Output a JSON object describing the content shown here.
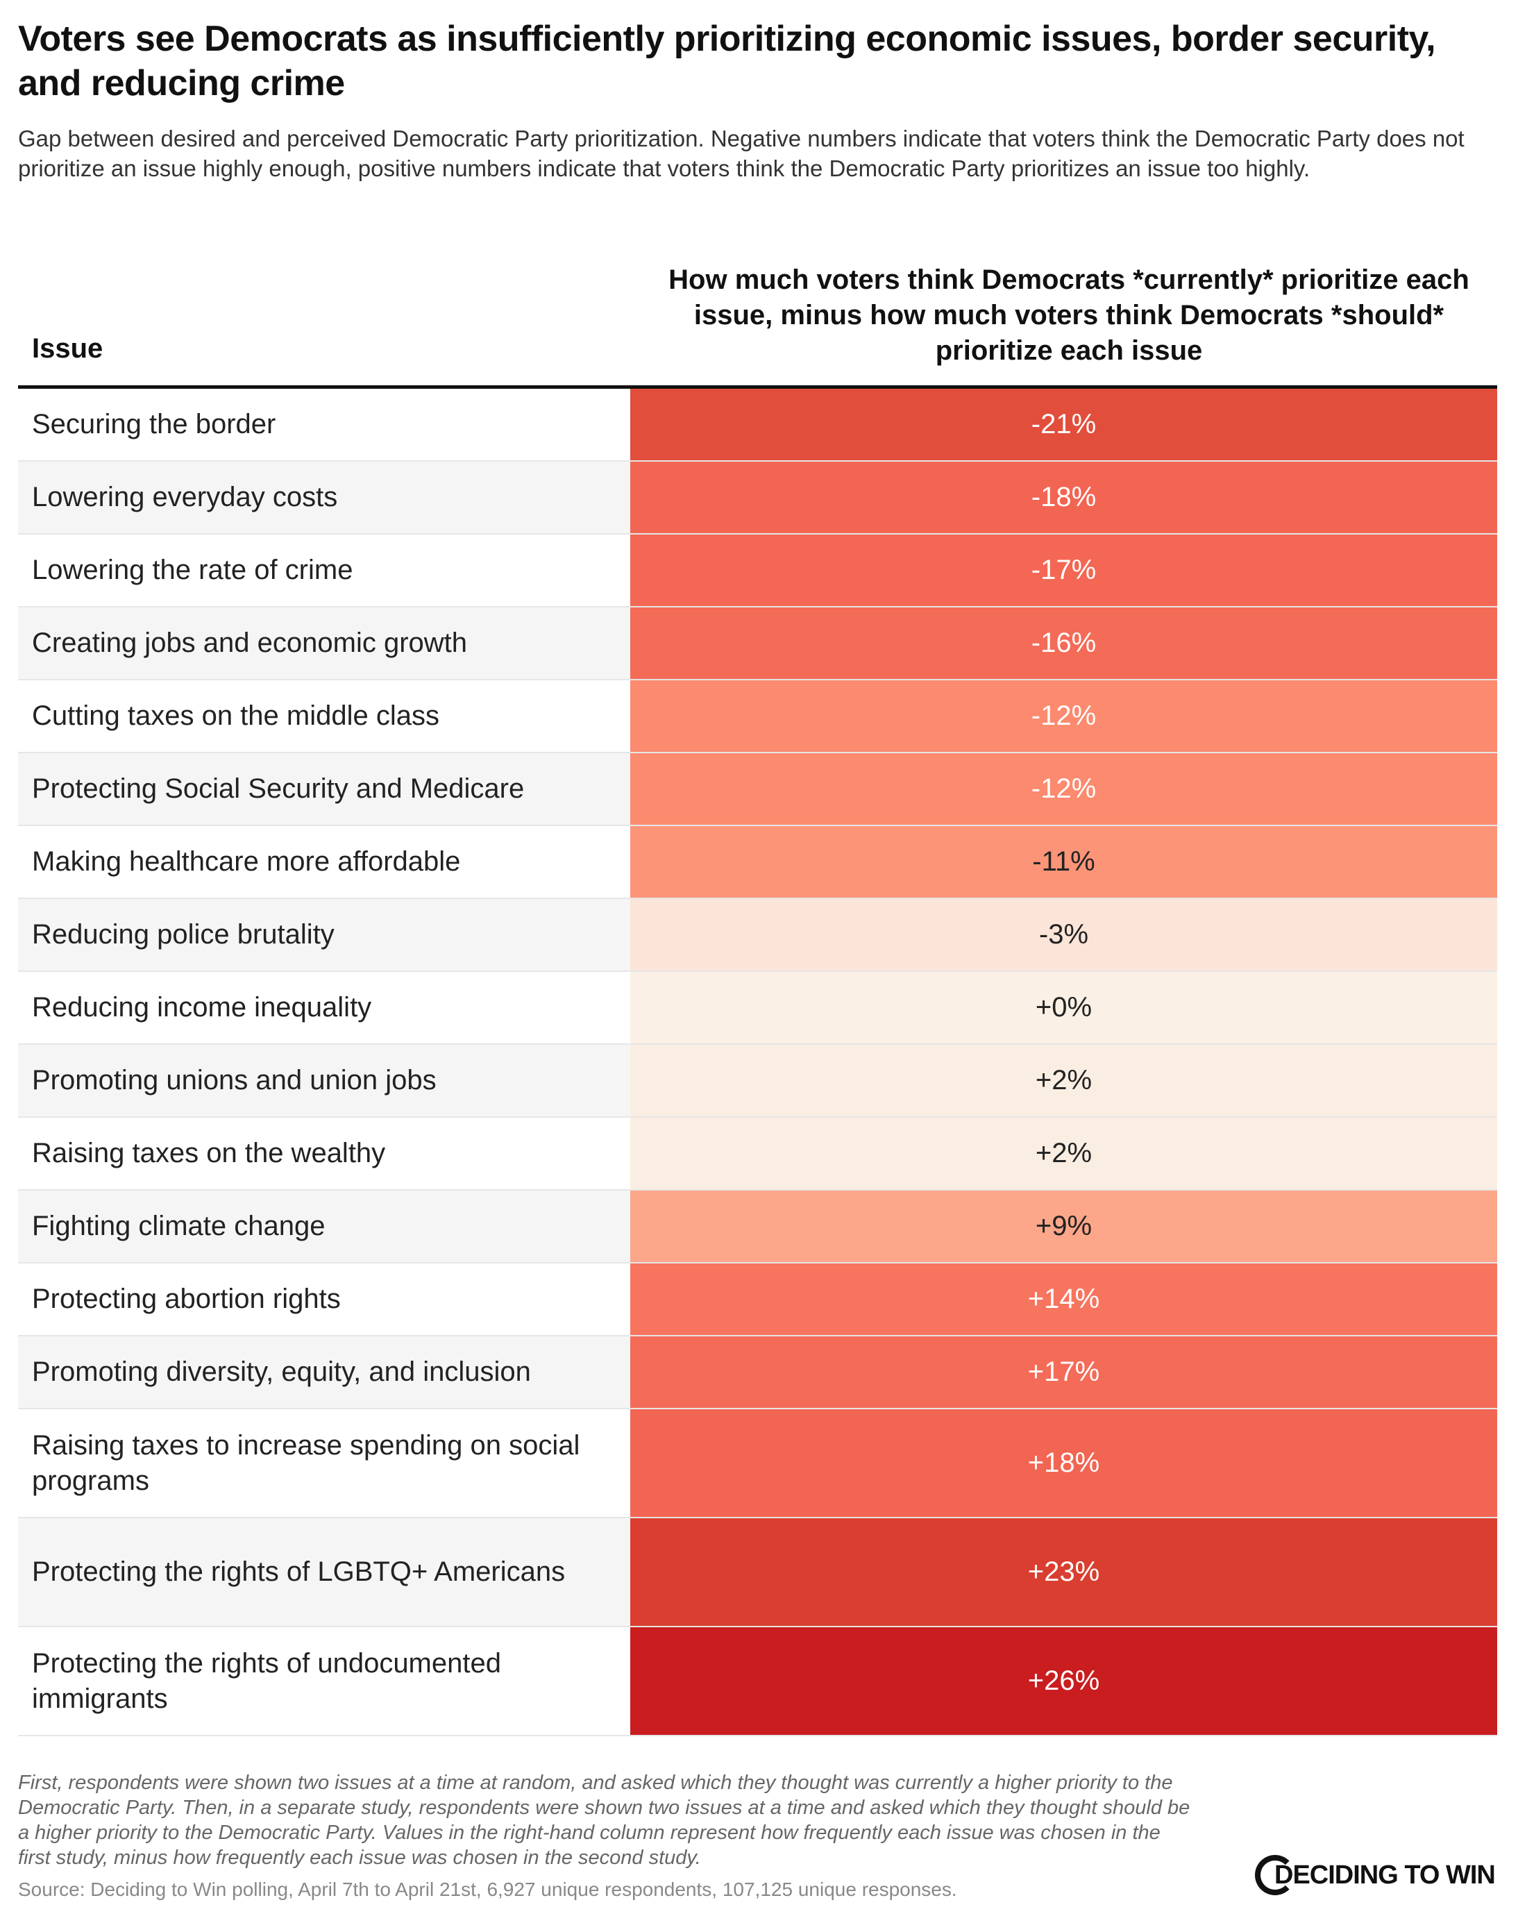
{
  "title": "Voters see Democrats as insufficiently prioritizing economic issues, border security, and reducing crime",
  "subtitle": "Gap between desired and perceived Democratic Party prioritization. Negative numbers indicate that voters think the Democratic Party does not prioritize an issue highly enough, positive numbers indicate that voters think the Democratic Party prioritizes an issue too highly.",
  "footnote": "First, respondents were shown two issues at a time at random, and asked which they thought was currently a higher priority to the Democratic Party. Then, in a separate study, respondents were shown two issues at a time and asked which they thought should be a higher priority to the Democratic Party. Values in the right-hand column represent how frequently each issue was chosen in the first study, minus how frequently each issue was chosen in the second study.",
  "source": "Source: Deciding to Win polling, April 7th to April 21st, 6,927 unique respondents, 107,125 unique responses.",
  "logo_text": "DECIDING TO WIN",
  "chart_data": {
    "type": "table",
    "columns": [
      "Issue",
      "How much voters think Democrats *currently* prioritize each issue, minus how much voters think Democrats *should* prioritize each issue"
    ],
    "rows": [
      {
        "issue": "Securing the border",
        "value": -21,
        "label": "-21%",
        "color": "#e24e3c",
        "text_color": "#ffffff"
      },
      {
        "issue": "Lowering everyday costs",
        "value": -18,
        "label": "-18%",
        "color": "#f26552",
        "text_color": "#ffffff"
      },
      {
        "issue": "Lowering the rate of crime",
        "value": -17,
        "label": "-17%",
        "color": "#f36754",
        "text_color": "#ffffff"
      },
      {
        "issue": "Creating jobs and economic growth",
        "value": -16,
        "label": "-16%",
        "color": "#f46b57",
        "text_color": "#ffffff"
      },
      {
        "issue": "Cutting taxes on the middle class",
        "value": -12,
        "label": "-12%",
        "color": "#fb8a6f",
        "text_color": "#ffffff"
      },
      {
        "issue": "Protecting Social Security and Medicare",
        "value": -12,
        "label": "-12%",
        "color": "#fb8a6f",
        "text_color": "#ffffff"
      },
      {
        "issue": "Making healthcare more affordable",
        "value": -11,
        "label": "-11%",
        "color": "#fc9478",
        "text_color": "#222222"
      },
      {
        "issue": "Reducing police brutality",
        "value": -3,
        "label": "-3%",
        "color": "#fbe4d8",
        "text_color": "#222222"
      },
      {
        "issue": "Reducing income inequality",
        "value": 0,
        "label": "+0%",
        "color": "#faf0e5",
        "text_color": "#222222"
      },
      {
        "issue": "Promoting unions and union jobs",
        "value": 2,
        "label": "+2%",
        "color": "#faeee3",
        "text_color": "#222222"
      },
      {
        "issue": "Raising taxes on the wealthy",
        "value": 2,
        "label": "+2%",
        "color": "#faeee3",
        "text_color": "#222222"
      },
      {
        "issue": "Fighting climate change",
        "value": 9,
        "label": "+9%",
        "color": "#fca68a",
        "text_color": "#222222"
      },
      {
        "issue": "Protecting abortion rights",
        "value": 14,
        "label": "+14%",
        "color": "#f7755f",
        "text_color": "#ffffff"
      },
      {
        "issue": "Promoting diversity, equity, and inclusion",
        "value": 17,
        "label": "+17%",
        "color": "#f46b58",
        "text_color": "#ffffff"
      },
      {
        "issue": "Raising taxes to increase spending on social programs",
        "value": 18,
        "label": "+18%",
        "color": "#f26552",
        "text_color": "#ffffff"
      },
      {
        "issue": "Protecting the rights of LGBTQ+ Americans",
        "value": 23,
        "label": "+23%",
        "color": "#d93e30",
        "text_color": "#ffffff"
      },
      {
        "issue": "Protecting the rights of undocumented immigrants",
        "value": 26,
        "label": "+26%",
        "color": "#c91d1f",
        "text_color": "#ffffff"
      }
    ]
  }
}
